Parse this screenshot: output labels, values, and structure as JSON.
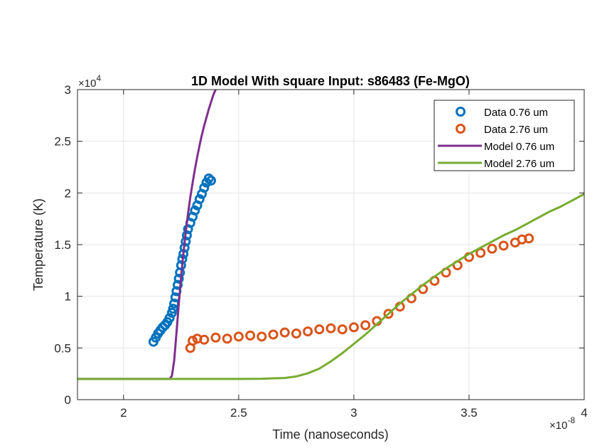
{
  "chart_data": {
    "type": "scatter",
    "title": "1D Model With square Input: s86483 (Fe-MgO)",
    "xlabel": "Time (nanoseconds)",
    "ylabel": "Temperature (K)",
    "xlim": [
      1.8e-08,
      4e-08
    ],
    "ylim": [
      0,
      30000
    ],
    "x_ticks": [
      2e-08,
      2.5e-08,
      3e-08,
      3.5e-08,
      4e-08
    ],
    "x_tick_labels": [
      "2",
      "2.5",
      "3",
      "3.5",
      "4"
    ],
    "y_ticks": [
      0,
      5000,
      10000,
      15000,
      20000,
      25000,
      30000
    ],
    "y_tick_labels": [
      "0",
      "0.5",
      "1",
      "1.5",
      "2",
      "2.5",
      "3"
    ],
    "x_exponent": {
      "base": "×10",
      "power": "-8"
    },
    "y_exponent": {
      "base": "×10",
      "power": "4"
    },
    "grid": true,
    "legend_position": "top-right",
    "series": [
      {
        "name": "Data 0.76 um",
        "kind": "markers",
        "color": "#0072BD",
        "x": [
          2.13e-08,
          2.14e-08,
          2.15e-08,
          2.16e-08,
          2.17e-08,
          2.18e-08,
          2.19e-08,
          2.2e-08,
          2.21e-08,
          2.215e-08,
          2.22e-08,
          2.225e-08,
          2.23e-08,
          2.235e-08,
          2.24e-08,
          2.245e-08,
          2.25e-08,
          2.255e-08,
          2.26e-08,
          2.265e-08,
          2.27e-08,
          2.275e-08,
          2.28e-08,
          2.29e-08,
          2.3e-08,
          2.31e-08,
          2.32e-08,
          2.33e-08,
          2.34e-08,
          2.35e-08,
          2.36e-08,
          2.37e-08,
          2.38e-08
        ],
        "y": [
          5600,
          6000,
          6400,
          6700,
          7000,
          7200,
          7500,
          7900,
          8400,
          8800,
          9300,
          9900,
          10500,
          11100,
          11700,
          12300,
          13000,
          13600,
          14100,
          14700,
          15300,
          15900,
          16500,
          17100,
          17700,
          18300,
          18800,
          19400,
          19900,
          20500,
          21000,
          21400,
          21200
        ]
      },
      {
        "name": "Data 2.76 um",
        "kind": "markers",
        "color": "#D95319",
        "x": [
          2.29e-08,
          2.3e-08,
          2.32e-08,
          2.35e-08,
          2.4e-08,
          2.45e-08,
          2.5e-08,
          2.55e-08,
          2.6e-08,
          2.65e-08,
          2.7e-08,
          2.75e-08,
          2.8e-08,
          2.85e-08,
          2.9e-08,
          2.95e-08,
          3e-08,
          3.05e-08,
          3.1e-08,
          3.15e-08,
          3.2e-08,
          3.25e-08,
          3.3e-08,
          3.35e-08,
          3.4e-08,
          3.45e-08,
          3.5e-08,
          3.55e-08,
          3.6e-08,
          3.65e-08,
          3.7e-08,
          3.73e-08,
          3.76e-08
        ],
        "y": [
          5000,
          5700,
          5900,
          5800,
          6000,
          5900,
          6100,
          6200,
          6100,
          6300,
          6500,
          6400,
          6600,
          6800,
          6900,
          6800,
          7000,
          7200,
          7600,
          8300,
          9000,
          9800,
          10700,
          11500,
          12300,
          13000,
          13800,
          14200,
          14600,
          14900,
          15200,
          15500,
          15600
        ]
      },
      {
        "name": "Model 0.76 um",
        "kind": "line",
        "color": "#7E2F8E",
        "x": [
          1.8e-08,
          2.2e-08,
          2.21e-08,
          2.22e-08,
          2.23e-08,
          2.24e-08,
          2.25e-08,
          2.26e-08,
          2.27e-08,
          2.28e-08,
          2.29e-08,
          2.3e-08,
          2.31e-08,
          2.32e-08,
          2.33e-08,
          2.34e-08,
          2.35e-08,
          2.36e-08,
          2.37e-08,
          2.38e-08,
          2.39e-08,
          2.4e-08
        ],
        "y": [
          2000,
          2000,
          2300,
          3800,
          6500,
          9300,
          11900,
          14200,
          16200,
          18000,
          19600,
          21000,
          22300,
          23500,
          24600,
          25600,
          26500,
          27300,
          28100,
          28800,
          29500,
          30000
        ]
      },
      {
        "name": "Model 2.76 um",
        "kind": "line",
        "color": "#77AC30",
        "x": [
          1.8e-08,
          2.5e-08,
          2.6e-08,
          2.7e-08,
          2.75e-08,
          2.8e-08,
          2.85e-08,
          2.9e-08,
          2.95e-08,
          3e-08,
          3.05e-08,
          3.1e-08,
          3.15e-08,
          3.2e-08,
          3.25e-08,
          3.3e-08,
          3.35e-08,
          3.4e-08,
          3.45e-08,
          3.5e-08,
          3.55e-08,
          3.6e-08,
          3.65e-08,
          3.7e-08,
          3.75e-08,
          3.8e-08,
          3.85e-08,
          3.9e-08,
          3.95e-08,
          4e-08
        ],
        "y": [
          2000,
          2000,
          2020,
          2100,
          2250,
          2550,
          3000,
          3700,
          4500,
          5400,
          6300,
          7300,
          8300,
          9300,
          10200,
          11100,
          11900,
          12700,
          13400,
          14100,
          14700,
          15300,
          15900,
          16400,
          17000,
          17600,
          18200,
          18700,
          19300,
          19900
        ]
      }
    ]
  }
}
